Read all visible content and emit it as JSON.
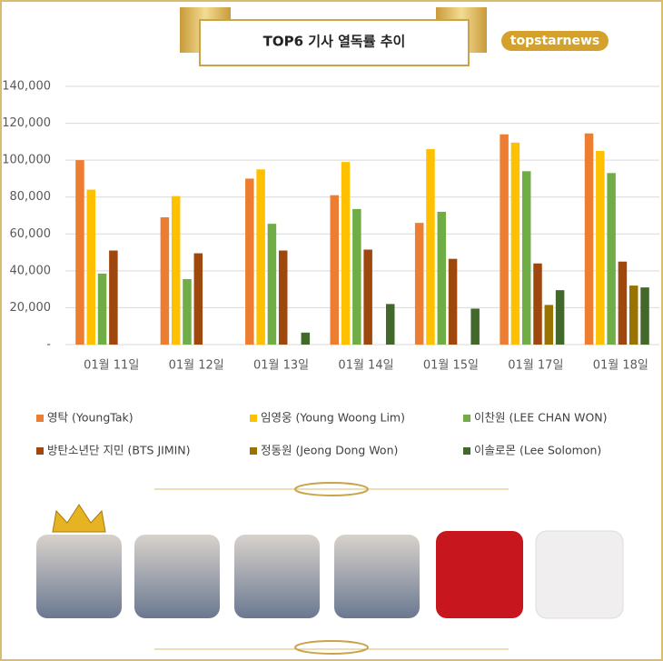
{
  "brand": "topstarnews",
  "chart_data": {
    "type": "bar",
    "title": "TOP6 기사 열독률 추이",
    "categories": [
      "01월 11일",
      "01월 12일",
      "01월 13일",
      "01월 14일",
      "01월 15일",
      "01월 17일",
      "01월 18일"
    ],
    "series": [
      {
        "name": "영탁 (YoungTak)",
        "color": "#ed7d31",
        "values": [
          100000,
          69000,
          90000,
          81000,
          66000,
          114000,
          114500
        ]
      },
      {
        "name": "임영웅 (Young Woong Lim)",
        "color": "#ffc000",
        "values": [
          84000,
          80500,
          95000,
          99000,
          106000,
          109500,
          105000
        ]
      },
      {
        "name": "이찬원 (LEE CHAN WON)",
        "color": "#70ad47",
        "values": [
          38500,
          35500,
          65500,
          73500,
          72000,
          94000,
          93000
        ]
      },
      {
        "name": "방탄소년단 지민 (BTS JIMIN)",
        "color": "#9e480e",
        "values": [
          51000,
          49500,
          51000,
          51500,
          46500,
          44000,
          45000
        ]
      },
      {
        "name": "정동원 (Jeong Dong Won)",
        "color": "#997300",
        "values": [
          null,
          null,
          null,
          null,
          null,
          21500,
          32000
        ]
      },
      {
        "name": "이솔로몬 (Lee Solomon)",
        "color": "#43682b",
        "values": [
          null,
          null,
          6500,
          22000,
          19500,
          29500,
          31000
        ]
      }
    ],
    "ylim": [
      0,
      140000
    ],
    "yticks": [
      {
        "value": 0,
        "label": "-"
      },
      {
        "value": 20000,
        "label": "20,000"
      },
      {
        "value": 40000,
        "label": "40,000"
      },
      {
        "value": 60000,
        "label": "60,000"
      },
      {
        "value": 80000,
        "label": "80,000"
      },
      {
        "value": 100000,
        "label": "100,000"
      },
      {
        "value": 120000,
        "label": "120,000"
      },
      {
        "value": 140000,
        "label": "140,000"
      }
    ],
    "grid": true
  }
}
